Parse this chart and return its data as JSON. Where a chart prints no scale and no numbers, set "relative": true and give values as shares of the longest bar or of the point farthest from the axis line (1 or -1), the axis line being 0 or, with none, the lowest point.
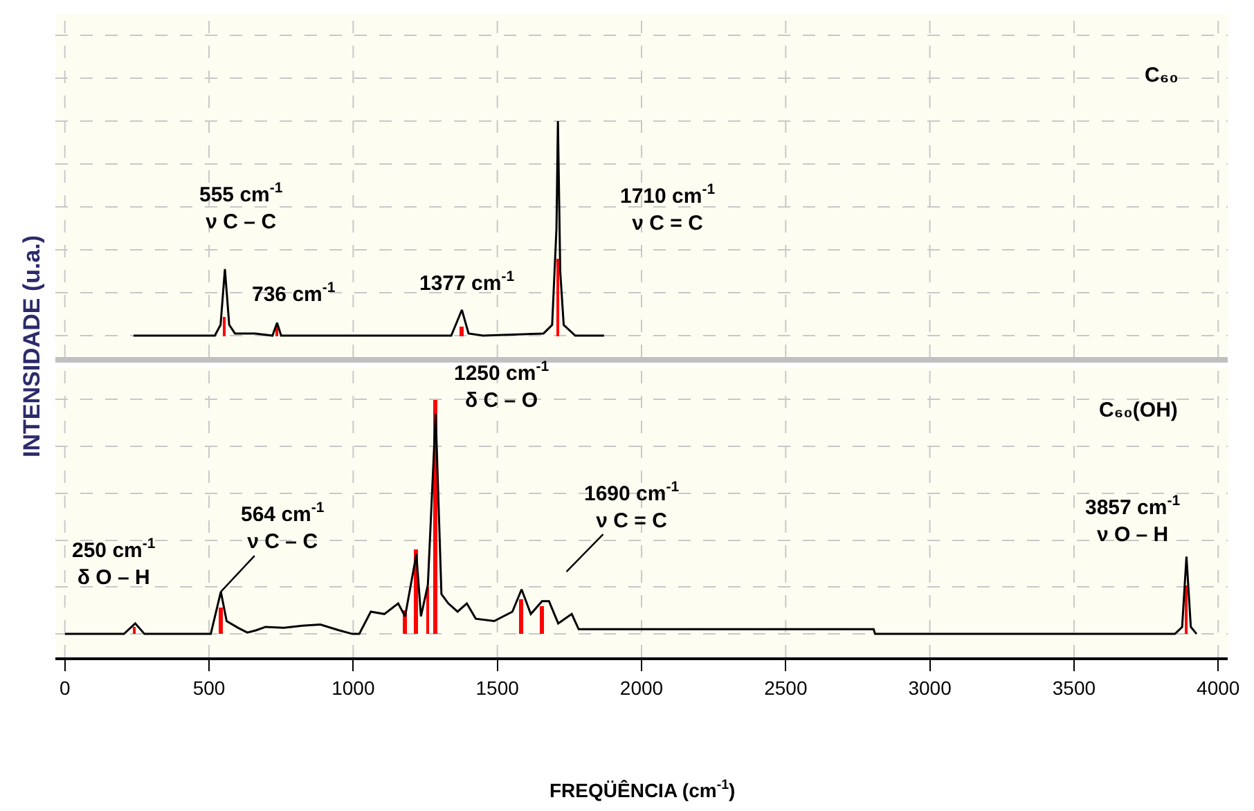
{
  "chart_data": [
    {
      "type": "line",
      "title": "C₆₀",
      "ylabel": "INTENSIDADE (u.a.)",
      "relative": true,
      "grid": true,
      "tick_labels": false,
      "marker": "none",
      "line_style": "solid",
      "xlim": [
        -33,
        4033
      ],
      "xticks": [
        0,
        500,
        1000,
        1500,
        2000,
        2500,
        3000,
        3500,
        4000
      ],
      "series": [
        {
          "type": "bar",
          "color": "#ff0000",
          "x": [
            555,
            736,
            1377,
            1710
          ],
          "values": [
            0.09,
            0.05,
            0.04,
            0.36
          ]
        },
        {
          "color": "#000000",
          "x": [
            238,
            520,
            540,
            555,
            570,
            590,
            660,
            720,
            736,
            750,
            1340,
            1377,
            1400,
            1450,
            1660,
            1690,
            1705,
            1710,
            1718,
            1730,
            1770,
            1870
          ],
          "values": [
            0,
            0,
            0.05,
            0.31,
            0.05,
            0.01,
            0.01,
            0,
            0.06,
            0,
            0,
            0.12,
            0.01,
            0,
            0.01,
            0.05,
            0.5,
            1.0,
            0.3,
            0.05,
            0,
            0
          ]
        }
      ],
      "annotations": [
        {
          "text": "555 cm$^{-1}$\nν C – C",
          "x": 555,
          "y": 0.31
        },
        {
          "text": "736 cm$^{-1}$",
          "x": 736,
          "y": 0.06
        },
        {
          "text": "1377 cm$^{-1}$",
          "x": 1377,
          "y": 0.12
        },
        "1710 cm$^{-1}$\nν C = C"
      ]
    },
    {
      "type": "line",
      "title": "C₆₀(OH)",
      "xlabel": "FREQÜÊNCIA (cm$^{-1}$)",
      "relative": true,
      "grid": true,
      "tick_labels": "x",
      "marker": "none",
      "line_style": "solid",
      "xlim": [
        -33,
        4033
      ],
      "xticks": [
        0,
        500,
        1000,
        1500,
        2000,
        2500,
        3000,
        3500,
        4000
      ],
      "series": [
        {
          "type": "bar",
          "color": "#ff0000",
          "x": [
            243,
            541,
            1180,
            1219,
            1259,
            1286,
            1584,
            1655,
            3890
          ],
          "values": [
            0.03,
            0.11,
            0.1,
            0.36,
            0.2,
            1.0,
            0.15,
            0.12,
            0.21
          ]
        },
        {
          "color": "#000000",
          "x": [
            0,
            205,
            244,
            276,
            506,
            541,
            561,
            601,
            633,
            664,
            696,
            759,
            823,
            886,
            950,
            997,
            1021,
            1061,
            1108,
            1156,
            1180,
            1219,
            1235,
            1259,
            1286,
            1306,
            1330,
            1362,
            1394,
            1425,
            1489,
            1552,
            1584,
            1616,
            1655,
            1679,
            1711,
            1758,
            1782,
            1806,
            2805,
            2810,
            3850,
            3875,
            3890,
            3905,
            3925
          ],
          "values": [
            0,
            0,
            0.045,
            0,
            0,
            0.18,
            0.055,
            0.026,
            0.006,
            0.016,
            0.03,
            0.026,
            0.035,
            0.04,
            0.016,
            0,
            0,
            0.095,
            0.085,
            0.13,
            0.075,
            0.34,
            0.075,
            0.21,
            0.94,
            0.17,
            0.13,
            0.095,
            0.13,
            0.065,
            0.055,
            0.095,
            0.19,
            0.085,
            0.14,
            0.14,
            0.045,
            0.085,
            0.02,
            0.02,
            0.02,
            0,
            0,
            0.03,
            0.33,
            0.03,
            0
          ]
        }
      ],
      "annotations": [
        {
          "text": "250 cm$^{-1}$\nδ O – H",
          "x": 243,
          "y": 0.045
        },
        {
          "text": "564 cm$^{-1}$\nν C – C",
          "x": 541,
          "y": 0.18
        },
        {
          "text": "1250 cm$^{-1}$\nδ C – O",
          "x": 1286,
          "y": 1.0
        },
        "1690 cm$^{-1}$\nν C = C",
        {
          "text": "3857 cm$^{-1}$\nν O – H",
          "x": 3890,
          "y": 0.33
        }
      ]
    }
  ]
}
